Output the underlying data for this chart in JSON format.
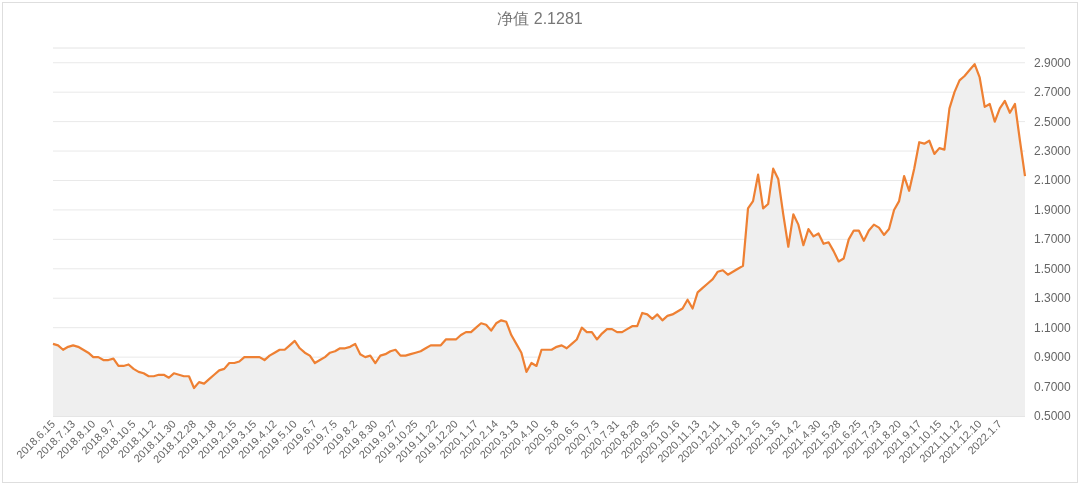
{
  "chart_data": {
    "type": "area",
    "title": "净值 2.1281",
    "categories": [
      "2018.6.15",
      null,
      null,
      null,
      "2018.7.13",
      null,
      null,
      null,
      "2018.8.10",
      null,
      null,
      null,
      "2018.9.7",
      null,
      null,
      null,
      "2018.10.5",
      null,
      null,
      null,
      "2018.11.2",
      null,
      null,
      null,
      "2018.11.30",
      null,
      null,
      null,
      "2018.12.28",
      null,
      null,
      null,
      "2019.1.18",
      null,
      null,
      null,
      "2019.2.15",
      null,
      null,
      null,
      "2019.3.15",
      null,
      null,
      null,
      "2019.4.12",
      null,
      null,
      null,
      "2019.5.10",
      null,
      null,
      null,
      "2019.6.7",
      null,
      null,
      null,
      "2019.7.5",
      null,
      null,
      null,
      "2019.8.2",
      null,
      null,
      null,
      "2019.8.30",
      null,
      null,
      null,
      "2019.9.27",
      null,
      null,
      null,
      "2019.10.25",
      null,
      null,
      null,
      "2019.11.22",
      null,
      null,
      null,
      "2019.12.20",
      null,
      null,
      null,
      "2020.1.17",
      null,
      null,
      null,
      "2020.2.14",
      null,
      null,
      null,
      "2020.3.13",
      null,
      null,
      null,
      "2020.4.10",
      null,
      null,
      null,
      "2020.5.8",
      null,
      null,
      null,
      "2020.6.5",
      null,
      null,
      null,
      "2020.7.3",
      null,
      null,
      null,
      "2020.7.31",
      null,
      null,
      null,
      "2020.8.28",
      null,
      null,
      null,
      "2020.9.25",
      null,
      null,
      null,
      "2020.10.16",
      null,
      null,
      null,
      "2020.11.13",
      null,
      null,
      null,
      "2020.12.11",
      null,
      null,
      null,
      "2021.1.8",
      null,
      null,
      null,
      "2021.2.5",
      null,
      null,
      null,
      "2021.3.5",
      null,
      null,
      null,
      "2021.4.2",
      null,
      null,
      null,
      "2021.4.30",
      null,
      null,
      null,
      "2021.5.28",
      null,
      null,
      null,
      "2021.6.25",
      null,
      null,
      null,
      "2021.7.23",
      null,
      null,
      null,
      "2021.8.20",
      null,
      null,
      null,
      "2021.9.17",
      null,
      null,
      null,
      "2021.10.15",
      null,
      null,
      null,
      "2021.11.12",
      null,
      null,
      null,
      "2021.12.10",
      null,
      null,
      null,
      "2022.1.7",
      null,
      null,
      null,
      null,
      null
    ],
    "series": [
      {
        "color": "#ee8033",
        "values": [
          0.99,
          0.98,
          0.95,
          0.97,
          0.98,
          0.97,
          0.95,
          0.93,
          0.9,
          0.9,
          0.88,
          0.88,
          0.89,
          0.84,
          0.84,
          0.85,
          0.82,
          0.8,
          0.79,
          0.77,
          0.77,
          0.78,
          0.78,
          0.76,
          0.79,
          0.78,
          0.77,
          0.77,
          0.69,
          0.73,
          0.72,
          0.75,
          0.78,
          0.81,
          0.82,
          0.86,
          0.86,
          0.87,
          0.9,
          0.9,
          0.9,
          0.9,
          0.88,
          0.91,
          0.93,
          0.95,
          0.95,
          0.98,
          1.01,
          0.96,
          0.93,
          0.91,
          0.86,
          0.88,
          0.9,
          0.93,
          0.94,
          0.96,
          0.96,
          0.97,
          0.99,
          0.92,
          0.9,
          0.91,
          0.86,
          0.91,
          0.92,
          0.94,
          0.95,
          0.91,
          0.91,
          0.92,
          0.93,
          0.94,
          0.96,
          0.98,
          0.98,
          0.98,
          1.02,
          1.02,
          1.02,
          1.05,
          1.07,
          1.07,
          1.1,
          1.13,
          1.12,
          1.08,
          1.13,
          1.15,
          1.14,
          1.05,
          0.99,
          0.93,
          0.8,
          0.86,
          0.84,
          0.95,
          0.95,
          0.95,
          0.97,
          0.98,
          0.96,
          0.99,
          1.02,
          1.1,
          1.07,
          1.07,
          1.02,
          1.06,
          1.09,
          1.09,
          1.07,
          1.07,
          1.09,
          1.11,
          1.11,
          1.2,
          1.19,
          1.16,
          1.19,
          1.15,
          1.18,
          1.19,
          1.21,
          1.23,
          1.29,
          1.23,
          1.34,
          1.37,
          1.4,
          1.43,
          1.48,
          1.49,
          1.46,
          1.48,
          1.5,
          1.52,
          1.91,
          1.96,
          2.14,
          1.91,
          1.94,
          2.18,
          2.11,
          1.87,
          1.65,
          1.87,
          1.8,
          1.66,
          1.77,
          1.72,
          1.74,
          1.67,
          1.68,
          1.62,
          1.55,
          1.57,
          1.7,
          1.76,
          1.76,
          1.69,
          1.76,
          1.8,
          1.78,
          1.73,
          1.77,
          1.9,
          1.96,
          2.13,
          2.03,
          2.18,
          2.36,
          2.35,
          2.37,
          2.28,
          2.32,
          2.31,
          2.59,
          2.7,
          2.78,
          2.81,
          2.85,
          2.89,
          2.8,
          2.6,
          2.62,
          2.5,
          2.59,
          2.64,
          2.56,
          2.62,
          2.37,
          2.13
        ]
      }
    ],
    "ylim": [
      0.5,
      3.0
    ],
    "yticks": [
      {
        "value": 0.5,
        "label": "0.5000"
      },
      {
        "value": 0.7,
        "label": "0.7000"
      },
      {
        "value": 0.9,
        "label": "0.9000"
      },
      {
        "value": 1.1,
        "label": "1.1000"
      },
      {
        "value": 1.3,
        "label": "1.3000"
      },
      {
        "value": 1.5,
        "label": "1.5000"
      },
      {
        "value": 1.7,
        "label": "1.7000"
      },
      {
        "value": 1.9,
        "label": "1.9000"
      },
      {
        "value": 2.1,
        "label": "2.1000"
      },
      {
        "value": 2.3,
        "label": "2.3000"
      },
      {
        "value": 2.5,
        "label": "2.5000"
      },
      {
        "value": 2.7,
        "label": "2.7000"
      },
      {
        "value": 2.9,
        "label": "2.9000"
      }
    ],
    "grid": "y"
  }
}
